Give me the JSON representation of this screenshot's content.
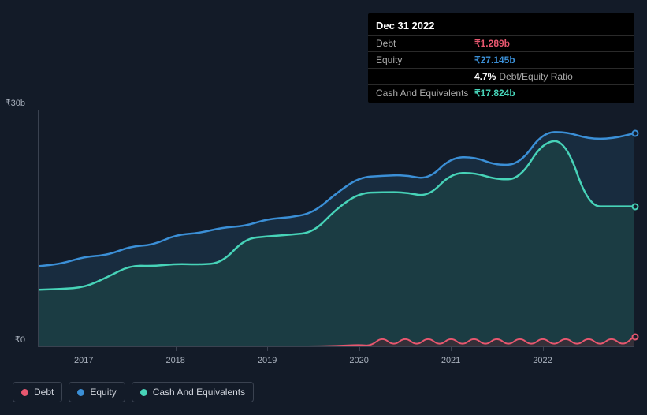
{
  "tooltip": {
    "date": "Dec 31 2022",
    "rows": [
      {
        "label": "Debt",
        "value": "₹1.289b",
        "color": "#e8576f"
      },
      {
        "label": "Equity",
        "value": "₹27.145b",
        "color": "#3b8fd6"
      },
      {
        "label": "",
        "value": "4.7%",
        "extra": "Debt/Equity Ratio",
        "color": "#ffffff"
      },
      {
        "label": "Cash And Equivalents",
        "value": "₹17.824b",
        "color": "#47d3b8"
      }
    ]
  },
  "chart": {
    "type": "area",
    "background": "#131b28",
    "plot_bg": "transparent",
    "axis_color": "#3a4250",
    "label_color": "#a8b0bc",
    "label_fontsize": 11,
    "ylim": [
      0,
      30
    ],
    "y_ticks": [
      {
        "v": 0,
        "label": "₹0"
      },
      {
        "v": 30,
        "label": "₹30b"
      }
    ],
    "x_years": [
      "2017",
      "2018",
      "2019",
      "2020",
      "2021",
      "2022"
    ],
    "x_range": [
      2016.5,
      2023
    ],
    "series": [
      {
        "name": "Equity",
        "color": "#3b8fd6",
        "fill": "#1e3a52",
        "fill_opacity": 0.55,
        "line_width": 2.5,
        "data": [
          [
            2016.5,
            10.2
          ],
          [
            2016.75,
            10.5
          ],
          [
            2017.0,
            11.4
          ],
          [
            2017.25,
            11.6
          ],
          [
            2017.5,
            12.7
          ],
          [
            2017.75,
            12.9
          ],
          [
            2018.0,
            14.2
          ],
          [
            2018.25,
            14.4
          ],
          [
            2018.5,
            15.1
          ],
          [
            2018.75,
            15.3
          ],
          [
            2019.0,
            16.2
          ],
          [
            2019.25,
            16.4
          ],
          [
            2019.5,
            17.0
          ],
          [
            2019.75,
            19.5
          ],
          [
            2020.0,
            21.5
          ],
          [
            2020.25,
            21.7
          ],
          [
            2020.5,
            21.8
          ],
          [
            2020.75,
            21.2
          ],
          [
            2021.0,
            24.0
          ],
          [
            2021.25,
            24.1
          ],
          [
            2021.5,
            23.0
          ],
          [
            2021.75,
            23.2
          ],
          [
            2022.0,
            27.2
          ],
          [
            2022.25,
            27.3
          ],
          [
            2022.5,
            26.4
          ],
          [
            2022.75,
            26.4
          ],
          [
            2023.0,
            27.1
          ]
        ]
      },
      {
        "name": "Cash And Equivalents",
        "color": "#47d3b8",
        "fill": "#1f4a47",
        "fill_opacity": 0.55,
        "line_width": 2.5,
        "data": [
          [
            2016.5,
            7.2
          ],
          [
            2016.75,
            7.3
          ],
          [
            2017.0,
            7.5
          ],
          [
            2017.25,
            8.8
          ],
          [
            2017.5,
            10.3
          ],
          [
            2017.75,
            10.2
          ],
          [
            2018.0,
            10.5
          ],
          [
            2018.25,
            10.4
          ],
          [
            2018.5,
            10.6
          ],
          [
            2018.75,
            13.7
          ],
          [
            2019.0,
            14.0
          ],
          [
            2019.25,
            14.2
          ],
          [
            2019.5,
            14.5
          ],
          [
            2019.75,
            17.5
          ],
          [
            2020.0,
            19.5
          ],
          [
            2020.25,
            19.6
          ],
          [
            2020.5,
            19.6
          ],
          [
            2020.75,
            19.0
          ],
          [
            2021.0,
            22.0
          ],
          [
            2021.25,
            22.1
          ],
          [
            2021.5,
            21.2
          ],
          [
            2021.75,
            21.3
          ],
          [
            2022.0,
            26.0
          ],
          [
            2022.25,
            26.2
          ],
          [
            2022.5,
            17.8
          ],
          [
            2022.75,
            17.8
          ],
          [
            2023.0,
            17.8
          ]
        ]
      },
      {
        "name": "Debt",
        "color": "#e8576f",
        "fill": "#4a2530",
        "fill_opacity": 0.55,
        "line_width": 2,
        "data": [
          [
            2016.5,
            0
          ],
          [
            2017.0,
            0
          ],
          [
            2017.5,
            0
          ],
          [
            2018.0,
            0
          ],
          [
            2018.5,
            0
          ],
          [
            2019.0,
            0
          ],
          [
            2019.5,
            0
          ],
          [
            2019.75,
            0.05
          ],
          [
            2020.0,
            0.2
          ],
          [
            2020.125,
            0.05
          ],
          [
            2020.25,
            1.2
          ],
          [
            2020.375,
            0.05
          ],
          [
            2020.5,
            1.2
          ],
          [
            2020.625,
            0.05
          ],
          [
            2020.75,
            1.2
          ],
          [
            2020.875,
            0.05
          ],
          [
            2021.0,
            1.2
          ],
          [
            2021.125,
            0.05
          ],
          [
            2021.25,
            1.2
          ],
          [
            2021.375,
            0.05
          ],
          [
            2021.5,
            1.2
          ],
          [
            2021.625,
            0.05
          ],
          [
            2021.75,
            1.2
          ],
          [
            2021.875,
            0.05
          ],
          [
            2022.0,
            1.2
          ],
          [
            2022.125,
            0.05
          ],
          [
            2022.25,
            1.2
          ],
          [
            2022.375,
            0.05
          ],
          [
            2022.5,
            1.2
          ],
          [
            2022.625,
            0.05
          ],
          [
            2022.75,
            1.2
          ],
          [
            2022.875,
            0.05
          ],
          [
            2023.0,
            1.29
          ]
        ]
      }
    ],
    "hover_x": 2023.0,
    "hover_dots": [
      {
        "y": 27.1,
        "color": "#3b8fd6"
      },
      {
        "y": 17.8,
        "color": "#47d3b8"
      },
      {
        "y": 1.29,
        "color": "#e8576f"
      }
    ]
  },
  "legend": [
    {
      "label": "Debt",
      "color": "#e8576f"
    },
    {
      "label": "Equity",
      "color": "#3b8fd6"
    },
    {
      "label": "Cash And Equivalents",
      "color": "#47d3b8"
    }
  ]
}
